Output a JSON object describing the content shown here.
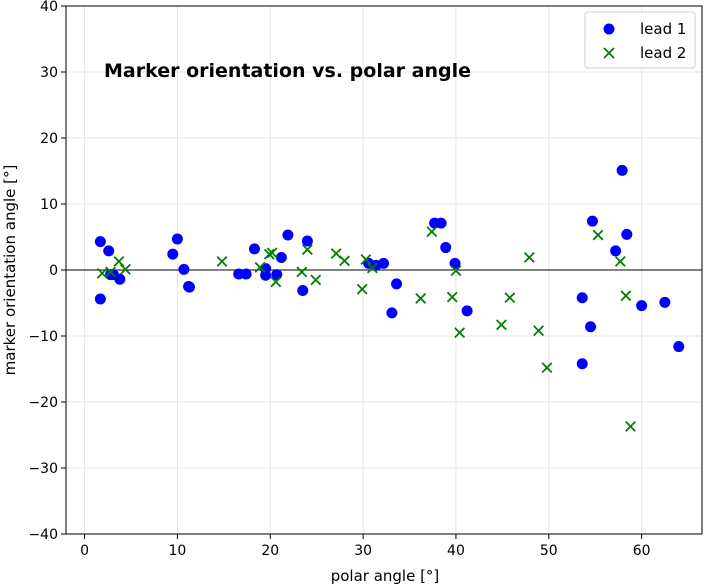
{
  "chart_data": {
    "type": "scatter",
    "title": "Marker orientation vs. polar angle",
    "xlabel": "polar angle [°]",
    "ylabel": "marker orientation angle [°]",
    "xlim": [
      -2,
      66.5
    ],
    "ylim": [
      -40,
      40
    ],
    "xticks": [
      0,
      10,
      20,
      30,
      40,
      50,
      60
    ],
    "yticks": [
      -40,
      -30,
      -20,
      -10,
      0,
      10,
      20,
      30,
      40
    ],
    "xtick_labels": [
      "0",
      "10",
      "20",
      "30",
      "40",
      "50",
      "60"
    ],
    "ytick_labels": [
      "−40",
      "−30",
      "−20",
      "−10",
      "0",
      "10",
      "20",
      "30",
      "40"
    ],
    "grid": true,
    "hline": 0,
    "legend_position": "top-right",
    "series": [
      {
        "name": "lead 1",
        "marker": "circle",
        "color": "#0000ff",
        "points": [
          [
            1.7,
            4.3
          ],
          [
            1.7,
            -4.4
          ],
          [
            2.6,
            2.9
          ],
          [
            2.8,
            -0.7
          ],
          [
            3.1,
            -0.7
          ],
          [
            3.8,
            -1.4
          ],
          [
            9.5,
            2.4
          ],
          [
            10.0,
            4.7
          ],
          [
            10.7,
            0.1
          ],
          [
            11.2,
            -2.5
          ],
          [
            11.3,
            -2.6
          ],
          [
            16.6,
            -0.6
          ],
          [
            17.4,
            -0.6
          ],
          [
            18.3,
            3.2
          ],
          [
            19.5,
            -0.8
          ],
          [
            19.5,
            0.2
          ],
          [
            20.7,
            -0.7
          ],
          [
            21.2,
            1.9
          ],
          [
            21.9,
            5.3
          ],
          [
            23.5,
            -3.1
          ],
          [
            24.0,
            4.4
          ],
          [
            30.6,
            1.0
          ],
          [
            31.4,
            0.7
          ],
          [
            32.2,
            1.0
          ],
          [
            33.1,
            -6.5
          ],
          [
            33.6,
            -2.1
          ],
          [
            37.7,
            7.1
          ],
          [
            38.4,
            7.1
          ],
          [
            38.9,
            3.4
          ],
          [
            39.9,
            1.0
          ],
          [
            41.2,
            -6.2
          ],
          [
            53.6,
            -4.2
          ],
          [
            53.6,
            -14.2
          ],
          [
            54.5,
            -8.6
          ],
          [
            54.7,
            7.4
          ],
          [
            57.2,
            2.9
          ],
          [
            57.9,
            15.1
          ],
          [
            58.4,
            5.4
          ],
          [
            60.0,
            -5.4
          ],
          [
            62.5,
            -4.9
          ],
          [
            64.0,
            -11.6
          ]
        ]
      },
      {
        "name": "lead 2",
        "marker": "x",
        "color": "#007f00",
        "points": [
          [
            1.9,
            -0.5
          ],
          [
            2.8,
            -0.3
          ],
          [
            3.7,
            1.3
          ],
          [
            4.4,
            0.1
          ],
          [
            14.8,
            1.3
          ],
          [
            18.9,
            0.4
          ],
          [
            19.9,
            2.4
          ],
          [
            20.2,
            2.6
          ],
          [
            20.6,
            -1.8
          ],
          [
            23.4,
            -0.3
          ],
          [
            24.0,
            3.1
          ],
          [
            24.9,
            -1.5
          ],
          [
            27.1,
            2.5
          ],
          [
            28.0,
            1.4
          ],
          [
            29.9,
            -2.9
          ],
          [
            30.3,
            1.6
          ],
          [
            31.0,
            0.3
          ],
          [
            36.2,
            -4.3
          ],
          [
            37.4,
            5.8
          ],
          [
            39.6,
            -4.1
          ],
          [
            40.0,
            -0.1
          ],
          [
            40.4,
            -9.5
          ],
          [
            44.9,
            -8.3
          ],
          [
            45.8,
            -4.2
          ],
          [
            47.9,
            1.9
          ],
          [
            48.9,
            -9.2
          ],
          [
            49.8,
            -14.8
          ],
          [
            55.3,
            5.3
          ],
          [
            57.7,
            1.3
          ],
          [
            58.3,
            -3.9
          ],
          [
            58.8,
            -23.7
          ]
        ]
      }
    ]
  }
}
